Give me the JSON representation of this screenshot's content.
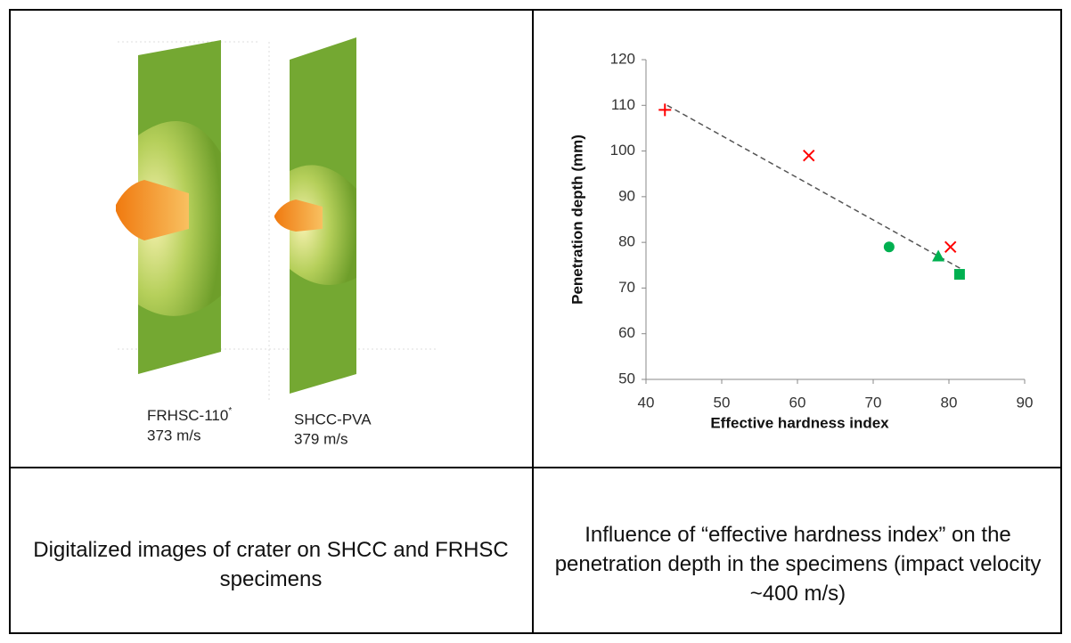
{
  "left_image": {
    "specimens": [
      {
        "name": "FRHSC-110",
        "superscript": "*",
        "velocity": "373 m/s"
      },
      {
        "name": "SHCC-PVA",
        "velocity": "379 m/s"
      }
    ]
  },
  "chart_data": {
    "type": "scatter",
    "x_label": "Effective hardness index",
    "y_label": "Penetration depth (mm)",
    "xlim": [
      40,
      90
    ],
    "xticks": [
      40,
      50,
      60,
      70,
      80,
      90
    ],
    "ylim": [
      50,
      120
    ],
    "yticks": [
      50,
      60,
      70,
      80,
      90,
      100,
      110,
      120
    ],
    "points": [
      {
        "x": 42.5,
        "y": 109,
        "marker": "plus",
        "color": "#ff0000"
      },
      {
        "x": 61.5,
        "y": 99,
        "marker": "cross",
        "color": "#ff0000"
      },
      {
        "x": 72.1,
        "y": 79,
        "marker": "circle",
        "color": "#00b050"
      },
      {
        "x": 78.6,
        "y": 77,
        "marker": "triangle",
        "color": "#00b050"
      },
      {
        "x": 80.2,
        "y": 79,
        "marker": "cross",
        "color": "#ff0000"
      },
      {
        "x": 81.4,
        "y": 73,
        "marker": "square",
        "color": "#00b050"
      }
    ],
    "trendline": {
      "x": [
        42.8,
        81.5
      ],
      "y": [
        110,
        74.3
      ],
      "color": "#555555"
    }
  },
  "captions": [
    "Digitalized images of crater on SHCC and FRHSC specimens",
    "Influence of “effective hardness index” on the penetration depth in the specimens (impact velocity ~400 m/s)"
  ]
}
